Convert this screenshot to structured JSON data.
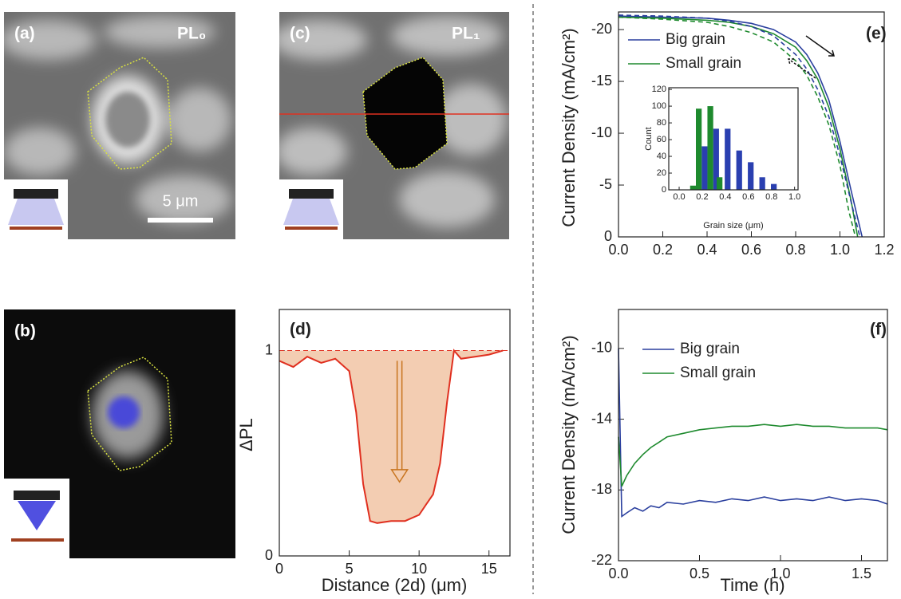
{
  "images": [
    {
      "label": "(a)",
      "title": "PL₀",
      "scale_bar": "5 μm"
    },
    {
      "label": "(b)"
    },
    {
      "label": "(c)",
      "title": "PL₁"
    }
  ],
  "chart_data": [
    {
      "type": "area",
      "label": "(d)",
      "x_label": "Distance (2d) (μm)",
      "y_label": "ΔPL",
      "color": "#e03020",
      "fill": "#f3cdb2",
      "x": [
        0,
        1,
        2,
        3,
        4,
        5,
        5.5,
        6,
        6.5,
        7,
        8,
        9,
        10,
        10.5,
        11,
        11.5,
        12,
        12.5,
        13,
        14,
        15,
        16
      ],
      "values": [
        0.95,
        0.92,
        0.97,
        0.94,
        0.96,
        0.9,
        0.7,
        0.35,
        0.17,
        0.16,
        0.17,
        0.17,
        0.2,
        0.25,
        0.3,
        0.45,
        0.75,
        1.0,
        0.96,
        0.97,
        0.98,
        1.0
      ],
      "baseline": 1,
      "xlim": [
        0,
        16.5
      ],
      "ylim": [
        0,
        1.2
      ],
      "xticks": [
        0,
        5,
        10,
        15
      ],
      "yticks": [
        0,
        1
      ]
    },
    {
      "type": "line",
      "label": "(e)",
      "y_label": "Current Density (mA/cm²)",
      "legend": "upper left",
      "xlim": [
        0,
        1.2
      ],
      "ylim": [
        0,
        -21.7
      ],
      "xticks": [
        {
          "value": 0,
          "label": "0.0"
        },
        0.2,
        0.4,
        0.6,
        0.8,
        {
          "value": 1,
          "label": "1.0"
        },
        1.2
      ],
      "yticks": [
        0,
        -5,
        -10,
        -15,
        -20
      ],
      "series": [
        {
          "name": "Big grain",
          "color": "#2a3f9e",
          "x": [
            0,
            0.2,
            0.4,
            0.5,
            0.6,
            0.7,
            0.8,
            0.85,
            0.9,
            0.95,
            1.0,
            1.05,
            1.1
          ],
          "values": [
            -21.3,
            -21.2,
            -21.1,
            -20.9,
            -20.6,
            -20.0,
            -18.8,
            -17.6,
            -15.8,
            -13.2,
            -9.2,
            -4.5,
            0
          ]
        },
        {
          "name": "Small grain",
          "color": "#1e8a2e",
          "x": [
            0,
            0.2,
            0.4,
            0.5,
            0.6,
            0.7,
            0.8,
            0.85,
            0.9,
            0.95,
            1.0,
            1.05,
            1.08
          ],
          "values": [
            -21.2,
            -21.1,
            -20.9,
            -20.7,
            -20.3,
            -19.6,
            -18.3,
            -17.0,
            -15.2,
            -12.5,
            -8.5,
            -3.5,
            0
          ]
        },
        {
          "color": "#2a3f9e",
          "dashed": true,
          "x": [
            0,
            0.2,
            0.4,
            0.5,
            0.6,
            0.7,
            0.8,
            0.85,
            0.9,
            0.95,
            1.0,
            1.05,
            1.09
          ],
          "values": [
            -21.4,
            -21.3,
            -21.1,
            -20.8,
            -20.3,
            -19.4,
            -17.6,
            -16.2,
            -14.2,
            -11.6,
            -7.8,
            -3.4,
            0
          ]
        },
        {
          "color": "#1e8a2e",
          "dashed": true,
          "x": [
            0,
            0.2,
            0.4,
            0.5,
            0.6,
            0.7,
            0.8,
            0.85,
            0.9,
            0.95,
            1.0,
            1.04,
            1.07
          ],
          "values": [
            -21.2,
            -21.0,
            -20.7,
            -20.3,
            -19.7,
            -18.8,
            -17.0,
            -15.6,
            -13.5,
            -10.8,
            -6.9,
            -2.5,
            0
          ]
        }
      ]
    },
    {
      "type": "bar",
      "inset": true,
      "x_label": "Grain size (μm)",
      "y_label": "Count",
      "bar_width": 0.05,
      "xlim": [
        -0.09,
        1.03
      ],
      "ylim": [
        0,
        122
      ],
      "xticks": [
        {
          "value": 0,
          "label": "0.0"
        },
        0.2,
        0.4,
        0.6,
        0.8,
        {
          "value": 1,
          "label": "1.0"
        }
      ],
      "yticks": [
        0,
        20,
        40,
        60,
        80,
        100,
        120
      ],
      "series": [
        {
          "color": "#2a3fb0",
          "x": [
            0.22,
            0.32,
            0.42,
            0.52,
            0.62,
            0.72,
            0.82
          ],
          "values": [
            52,
            73,
            73,
            47,
            33,
            15,
            7
          ]
        },
        {
          "color": "#1e8a2e",
          "x": [
            0.12,
            0.17,
            0.27,
            0.35
          ],
          "values": [
            5,
            97,
            100,
            15
          ]
        }
      ]
    },
    {
      "type": "line",
      "label": "(f)",
      "x_label": "Time (h)",
      "y_label": "Current Density (mA/cm²)",
      "legend": "upper left",
      "xlim": [
        0,
        1.66
      ],
      "ylim": [
        -22,
        -7.8
      ],
      "xticks": [
        {
          "value": 0,
          "label": "0.0"
        },
        0.5,
        {
          "value": 1,
          "label": "1.0"
        },
        1.5
      ],
      "yticks": [
        -10,
        -14,
        -18,
        -22
      ],
      "series": [
        {
          "name": "Big grain",
          "color": "#2a3f9e",
          "x": [
            0,
            0.02,
            0.05,
            0.1,
            0.15,
            0.2,
            0.25,
            0.3,
            0.4,
            0.5,
            0.6,
            0.7,
            0.8,
            0.9,
            1.0,
            1.1,
            1.2,
            1.3,
            1.4,
            1.5,
            1.6,
            1.66
          ],
          "values": [
            -10,
            -19.5,
            -19.3,
            -19.0,
            -19.2,
            -18.9,
            -19.0,
            -18.7,
            -18.8,
            -18.6,
            -18.7,
            -18.5,
            -18.6,
            -18.4,
            -18.6,
            -18.5,
            -18.6,
            -18.4,
            -18.6,
            -18.5,
            -18.6,
            -18.8
          ]
        },
        {
          "name": "Small grain",
          "color": "#1e8a2e",
          "x": [
            0,
            0.02,
            0.05,
            0.1,
            0.15,
            0.2,
            0.25,
            0.3,
            0.4,
            0.5,
            0.6,
            0.7,
            0.8,
            0.9,
            1.0,
            1.1,
            1.2,
            1.3,
            1.4,
            1.5,
            1.6,
            1.66
          ],
          "values": [
            -15,
            -17.8,
            -17.2,
            -16.5,
            -16.0,
            -15.6,
            -15.3,
            -15.0,
            -14.8,
            -14.6,
            -14.5,
            -14.4,
            -14.4,
            -14.3,
            -14.4,
            -14.3,
            -14.4,
            -14.4,
            -14.5,
            -14.5,
            -14.5,
            -14.6
          ]
        }
      ]
    }
  ]
}
